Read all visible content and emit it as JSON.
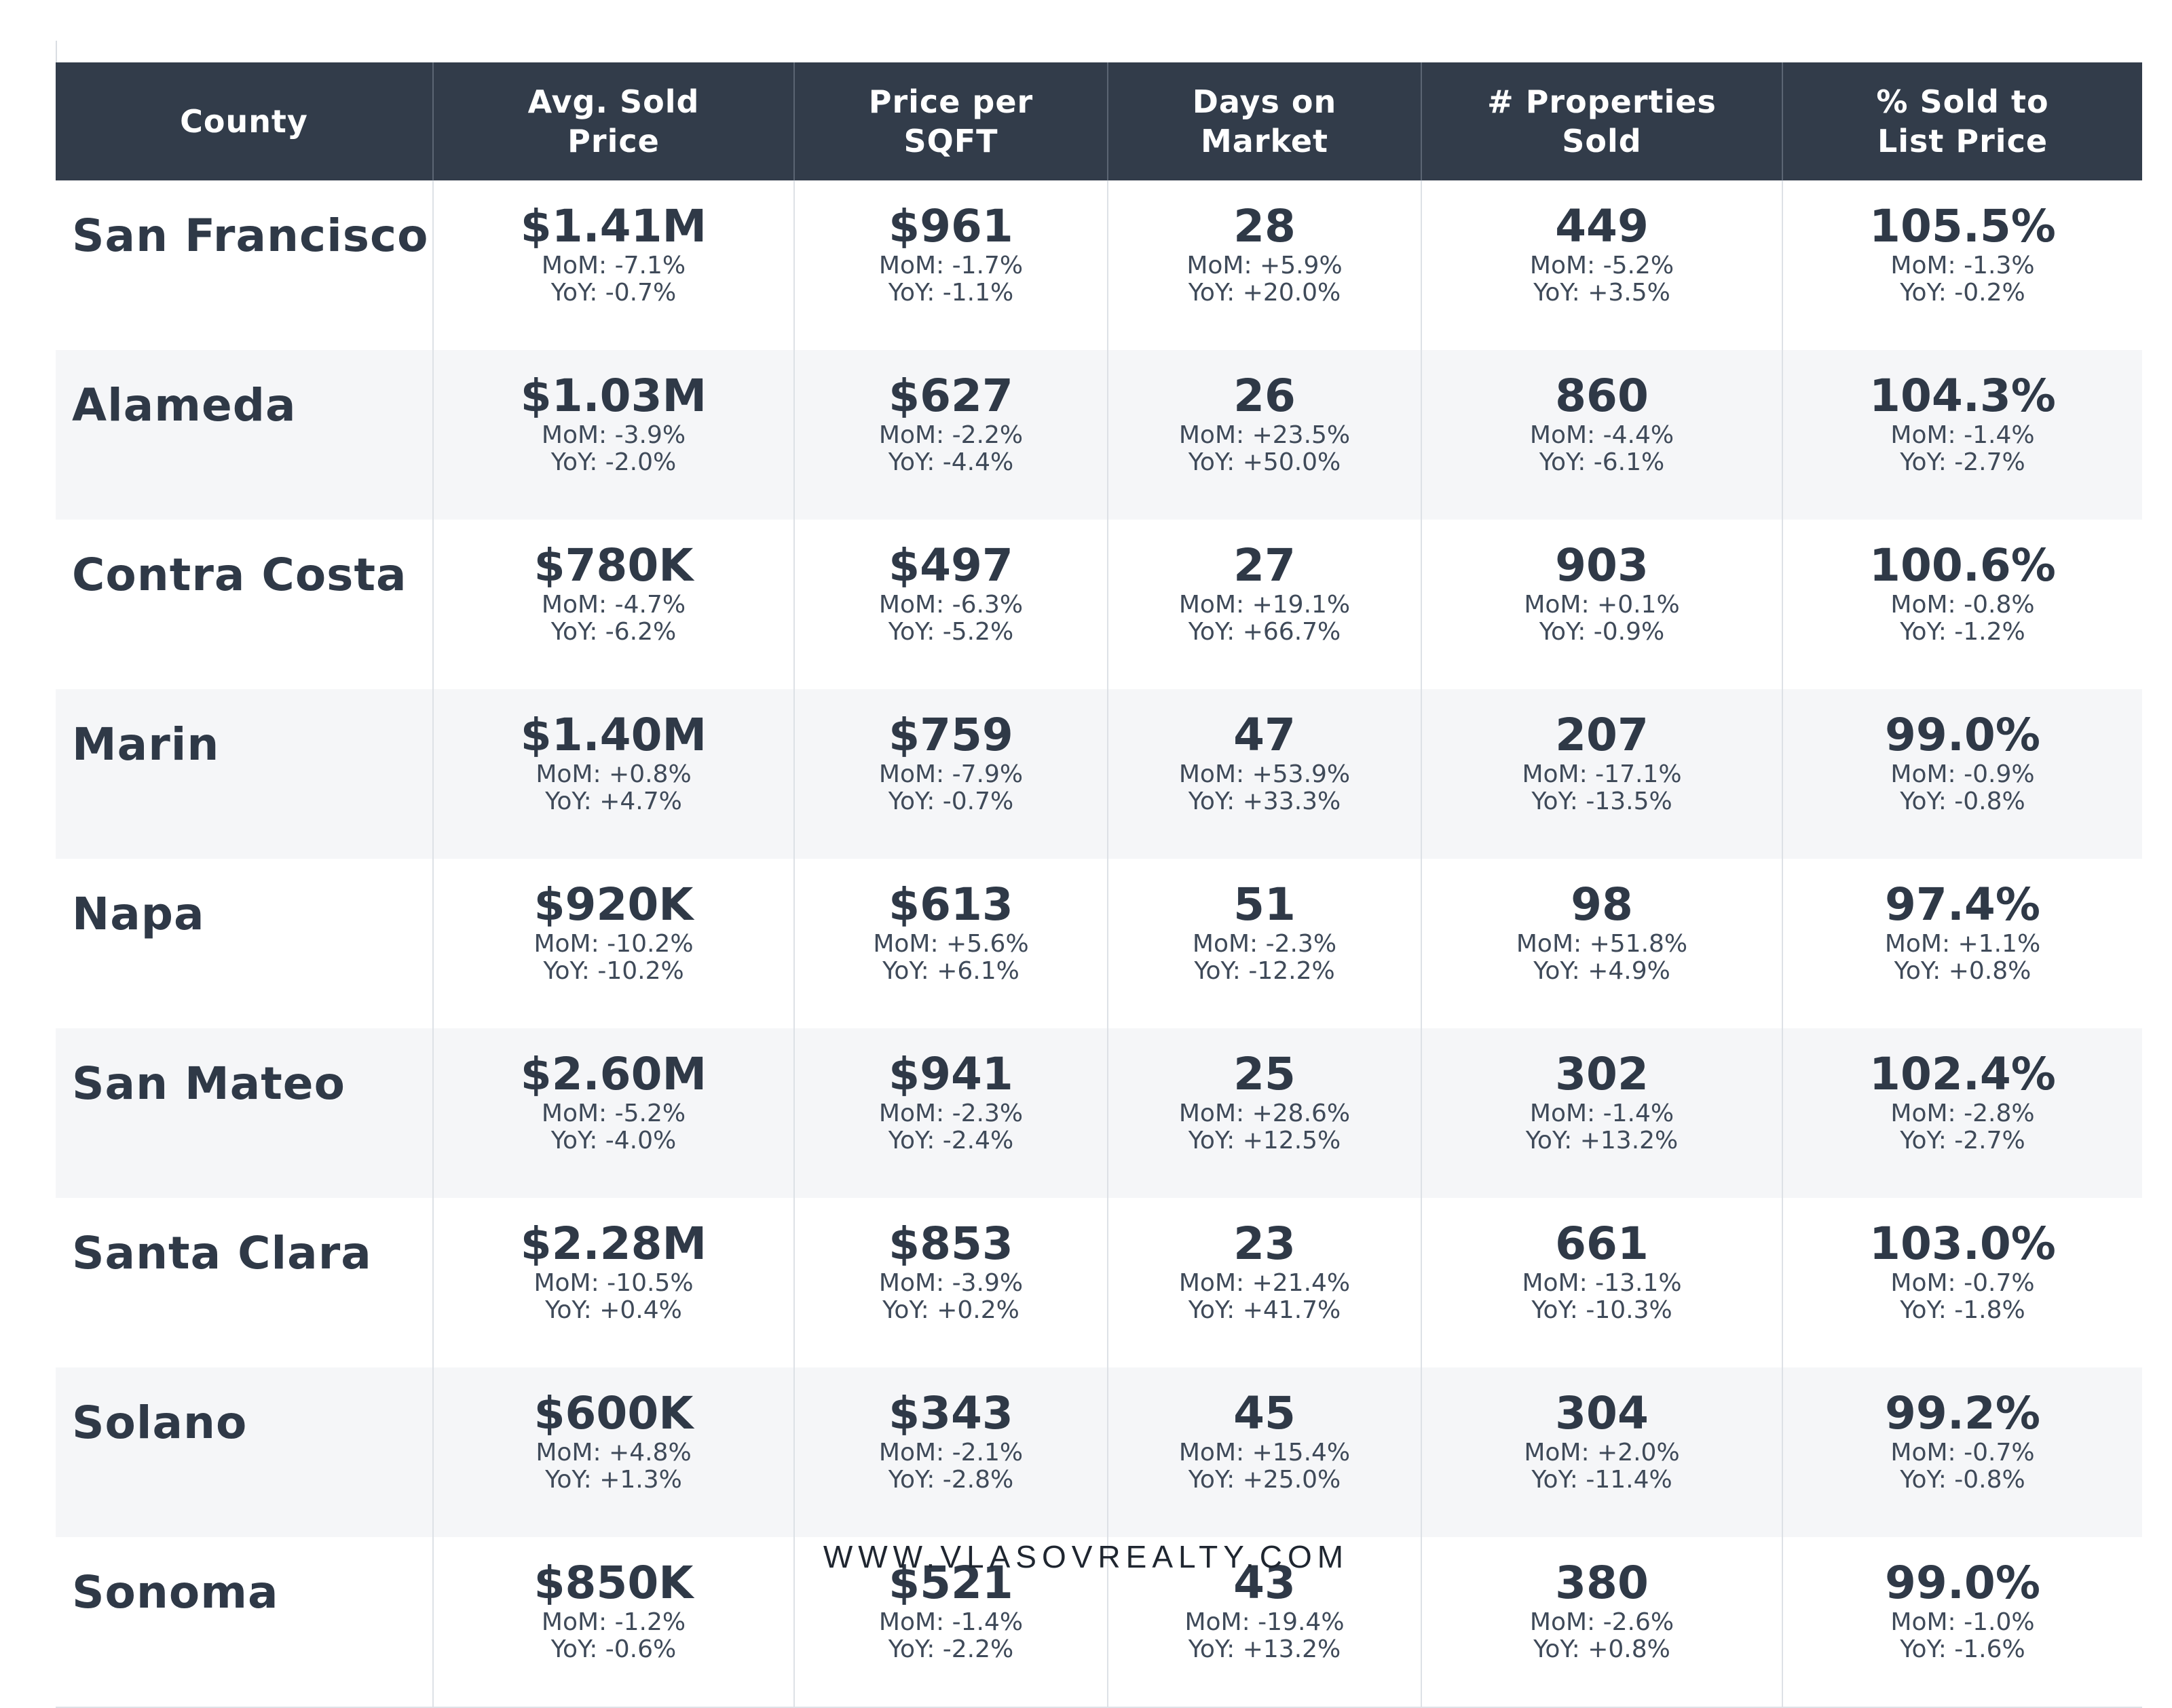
{
  "headers": {
    "county": "County",
    "avg_price_line1": "Avg. Sold",
    "avg_price_line2": "Price",
    "ppsf_line1": "Price per",
    "ppsf_line2": "SQFT",
    "dom_line1": "Days on",
    "dom_line2": "Market",
    "props_line1": "# Properties",
    "props_line2": "Sold",
    "pct_line1": "% Sold to",
    "pct_line2": "List Price"
  },
  "rows": [
    {
      "county": "San Francisco",
      "avg_price": {
        "value": "$1.41M",
        "mom": "MoM: -7.1%",
        "yoy": "YoY: -0.7%"
      },
      "price_sqft": {
        "value": "$961",
        "mom": "MoM: -1.7%",
        "yoy": "YoY: -1.1%"
      },
      "days_on_market": {
        "value": "28",
        "mom": "MoM: +5.9%",
        "yoy": "YoY: +20.0%"
      },
      "properties_sold": {
        "value": "449",
        "mom": "MoM: -5.2%",
        "yoy": "YoY: +3.5%"
      },
      "pct_sold_list": {
        "value": "105.5%",
        "mom": "MoM: -1.3%",
        "yoy": "YoY: -0.2%"
      }
    },
    {
      "county": "Alameda",
      "avg_price": {
        "value": "$1.03M",
        "mom": "MoM: -3.9%",
        "yoy": "YoY: -2.0%"
      },
      "price_sqft": {
        "value": "$627",
        "mom": "MoM: -2.2%",
        "yoy": "YoY: -4.4%"
      },
      "days_on_market": {
        "value": "26",
        "mom": "MoM: +23.5%",
        "yoy": "YoY: +50.0%"
      },
      "properties_sold": {
        "value": "860",
        "mom": "MoM: -4.4%",
        "yoy": "YoY: -6.1%"
      },
      "pct_sold_list": {
        "value": "104.3%",
        "mom": "MoM: -1.4%",
        "yoy": "YoY: -2.7%"
      }
    },
    {
      "county": "Contra Costa",
      "avg_price": {
        "value": "$780K",
        "mom": "MoM: -4.7%",
        "yoy": "YoY: -6.2%"
      },
      "price_sqft": {
        "value": "$497",
        "mom": "MoM: -6.3%",
        "yoy": "YoY: -5.2%"
      },
      "days_on_market": {
        "value": "27",
        "mom": "MoM: +19.1%",
        "yoy": "YoY: +66.7%"
      },
      "properties_sold": {
        "value": "903",
        "mom": "MoM: +0.1%",
        "yoy": "YoY: -0.9%"
      },
      "pct_sold_list": {
        "value": "100.6%",
        "mom": "MoM: -0.8%",
        "yoy": "YoY: -1.2%"
      }
    },
    {
      "county": "Marin",
      "avg_price": {
        "value": "$1.40M",
        "mom": "MoM: +0.8%",
        "yoy": "YoY: +4.7%"
      },
      "price_sqft": {
        "value": "$759",
        "mom": "MoM: -7.9%",
        "yoy": "YoY: -0.7%"
      },
      "days_on_market": {
        "value": "47",
        "mom": "MoM: +53.9%",
        "yoy": "YoY: +33.3%"
      },
      "properties_sold": {
        "value": "207",
        "mom": "MoM: -17.1%",
        "yoy": "YoY: -13.5%"
      },
      "pct_sold_list": {
        "value": "99.0%",
        "mom": "MoM: -0.9%",
        "yoy": "YoY: -0.8%"
      }
    },
    {
      "county": "Napa",
      "avg_price": {
        "value": "$920K",
        "mom": "MoM: -10.2%",
        "yoy": "YoY: -10.2%"
      },
      "price_sqft": {
        "value": "$613",
        "mom": "MoM: +5.6%",
        "yoy": "YoY: +6.1%"
      },
      "days_on_market": {
        "value": "51",
        "mom": "MoM: -2.3%",
        "yoy": "YoY: -12.2%"
      },
      "properties_sold": {
        "value": "98",
        "mom": "MoM: +51.8%",
        "yoy": "YoY: +4.9%"
      },
      "pct_sold_list": {
        "value": "97.4%",
        "mom": "MoM: +1.1%",
        "yoy": "YoY: +0.8%"
      }
    },
    {
      "county": "San Mateo",
      "avg_price": {
        "value": "$2.60M",
        "mom": "MoM: -5.2%",
        "yoy": "YoY: -4.0%"
      },
      "price_sqft": {
        "value": "$941",
        "mom": "MoM: -2.3%",
        "yoy": "YoY: -2.4%"
      },
      "days_on_market": {
        "value": "25",
        "mom": "MoM: +28.6%",
        "yoy": "YoY: +12.5%"
      },
      "properties_sold": {
        "value": "302",
        "mom": "MoM: -1.4%",
        "yoy": "YoY: +13.2%"
      },
      "pct_sold_list": {
        "value": "102.4%",
        "mom": "MoM: -2.8%",
        "yoy": "YoY: -2.7%"
      }
    },
    {
      "county": "Santa Clara",
      "avg_price": {
        "value": "$2.28M",
        "mom": "MoM: -10.5%",
        "yoy": "YoY: +0.4%"
      },
      "price_sqft": {
        "value": "$853",
        "mom": "MoM: -3.9%",
        "yoy": "YoY: +0.2%"
      },
      "days_on_market": {
        "value": "23",
        "mom": "MoM: +21.4%",
        "yoy": "YoY: +41.7%"
      },
      "properties_sold": {
        "value": "661",
        "mom": "MoM: -13.1%",
        "yoy": "YoY: -10.3%"
      },
      "pct_sold_list": {
        "value": "103.0%",
        "mom": "MoM: -0.7%",
        "yoy": "YoY: -1.8%"
      }
    },
    {
      "county": "Solano",
      "avg_price": {
        "value": "$600K",
        "mom": "MoM: +4.8%",
        "yoy": "YoY: +1.3%"
      },
      "price_sqft": {
        "value": "$343",
        "mom": "MoM: -2.1%",
        "yoy": "YoY: -2.8%"
      },
      "days_on_market": {
        "value": "45",
        "mom": "MoM: +15.4%",
        "yoy": "YoY: +25.0%"
      },
      "properties_sold": {
        "value": "304",
        "mom": "MoM: +2.0%",
        "yoy": "YoY: -11.4%"
      },
      "pct_sold_list": {
        "value": "99.2%",
        "mom": "MoM: -0.7%",
        "yoy": "YoY: -0.8%"
      }
    },
    {
      "county": "Sonoma",
      "avg_price": {
        "value": "$850K",
        "mom": "MoM: -1.2%",
        "yoy": "YoY: -0.6%"
      },
      "price_sqft": {
        "value": "$521",
        "mom": "MoM: -1.4%",
        "yoy": "YoY: -2.2%"
      },
      "days_on_market": {
        "value": "43",
        "mom": "MoM: -19.4%",
        "yoy": "YoY: +13.2%"
      },
      "properties_sold": {
        "value": "380",
        "mom": "MoM: -2.6%",
        "yoy": "YoY: +0.8%"
      },
      "pct_sold_list": {
        "value": "99.0%",
        "mom": "MoM: -1.0%",
        "yoy": "YoY: -1.6%"
      }
    }
  ],
  "footer": {
    "url": "WWW.VLASOVREALTY.COM"
  },
  "colors": {
    "header_bg": "#323c4a",
    "text_dark": "#2f3947",
    "row_stripe": "#f5f6f8"
  }
}
